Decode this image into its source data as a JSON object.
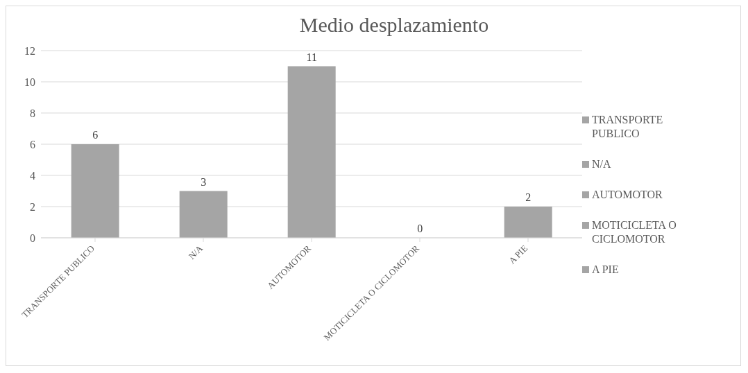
{
  "chart_data": {
    "type": "bar",
    "title": "Medio desplazamiento",
    "categories": [
      "TRANSPORTE PUBLICO",
      "N/A",
      "AUTOMOTOR",
      "MOTICICLETA O CICLOMOTOR",
      "A PIE"
    ],
    "series": [
      {
        "name": "TRANSPORTE PUBLICO",
        "color": "#a5a5a5",
        "values": [
          6,
          null,
          null,
          null,
          null
        ]
      },
      {
        "name": "N/A",
        "color": "#a5a5a5",
        "values": [
          null,
          3,
          null,
          null,
          null
        ]
      },
      {
        "name": "AUTOMOTOR",
        "color": "#a5a5a5",
        "values": [
          null,
          null,
          11,
          null,
          null
        ]
      },
      {
        "name": "MOTICICLETA O CICLOMOTOR",
        "color": "#a5a5a5",
        "values": [
          null,
          null,
          null,
          0,
          null
        ]
      },
      {
        "name": "A PIE",
        "color": "#a5a5a5",
        "values": [
          null,
          null,
          null,
          null,
          2
        ]
      }
    ],
    "stacked": true,
    "ylim": [
      0,
      12
    ],
    "yticks": [
      0,
      2,
      4,
      6,
      8,
      10,
      12
    ],
    "grid": "y",
    "legend": "right",
    "data_labels": true
  }
}
